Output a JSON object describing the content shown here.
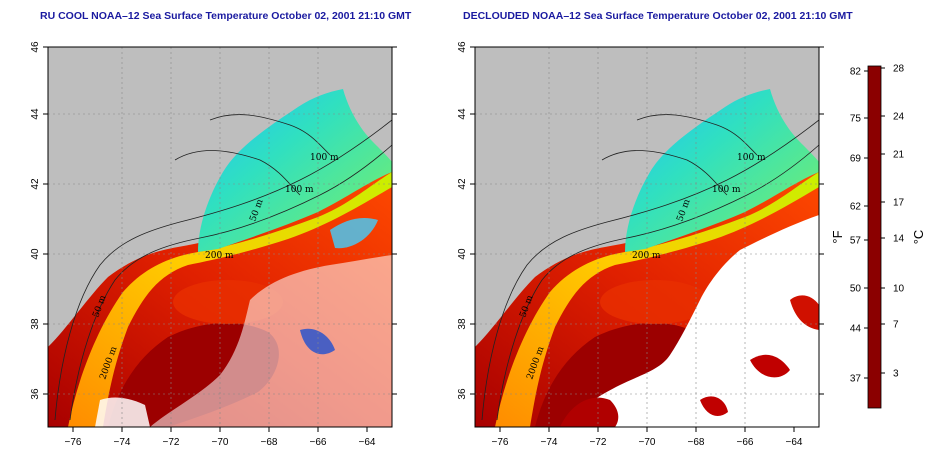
{
  "panels": [
    {
      "id": "left",
      "title": "RU COOL NOAA–12 Sea Surface Temperature October 02, 2001 21:10 GMT",
      "clouded": true
    },
    {
      "id": "right",
      "title": "DECLOUDED NOAA–12 Sea Surface Temperature October 02, 2001 21:10 GMT",
      "clouded": false
    }
  ],
  "axes": {
    "lon_ticks": [
      "−76",
      "−74",
      "−72",
      "−70",
      "−68",
      "−66",
      "−64"
    ],
    "lat_ticks": [
      "36",
      "38",
      "40",
      "42",
      "44",
      "46"
    ]
  },
  "contour_labels": [
    "100 m",
    "100 m",
    "50 m",
    "200 m",
    "50 m",
    "2000 m"
  ],
  "colorbar": {
    "fahrenheit_ticks": [
      "82",
      "75",
      "69",
      "62",
      "57",
      "50",
      "44",
      "37"
    ],
    "celsius_ticks": [
      "28",
      "24",
      "21",
      "17",
      "14",
      "10",
      "7",
      "3"
    ],
    "fahrenheit_label": "°F",
    "celsius_label": "°C",
    "colors": [
      "#8b0000",
      "#d40000",
      "#ff3a00",
      "#ff8c00",
      "#ffd000",
      "#c8f000",
      "#50e070",
      "#00e0d0",
      "#20a0ff",
      "#0040ff",
      "#00008b"
    ]
  },
  "colors": {
    "land": "#bebebe",
    "title": "#1a1aa0",
    "cloud": "#ffffff"
  }
}
